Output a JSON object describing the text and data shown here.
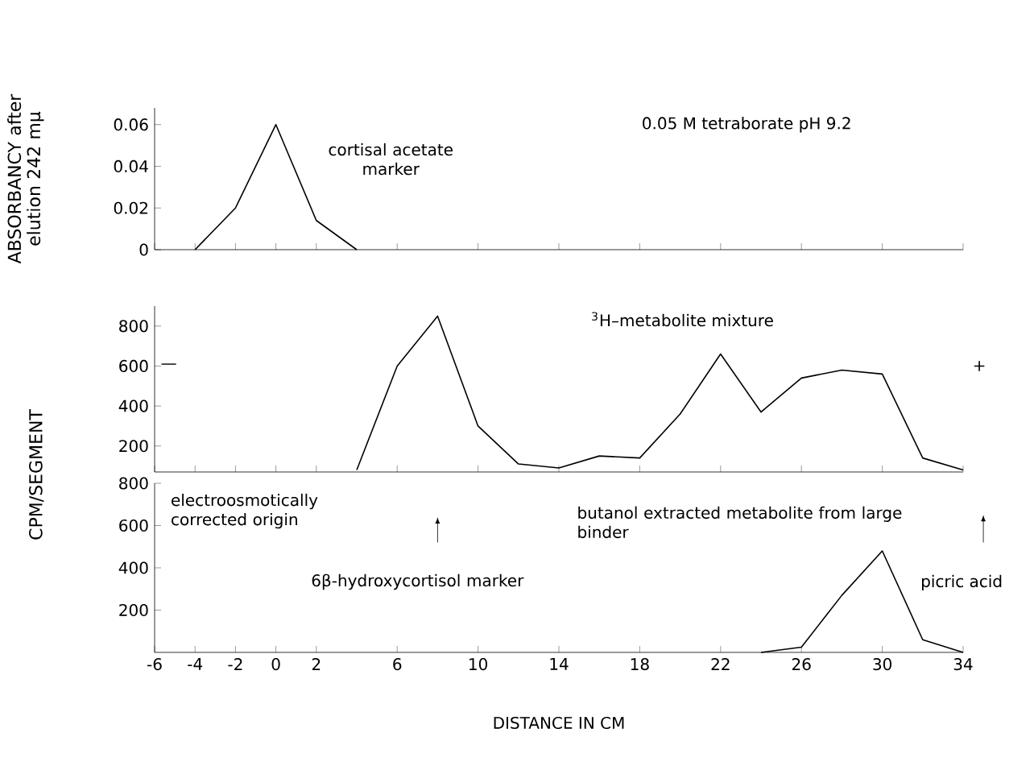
{
  "chart_data": [
    {
      "type": "line",
      "ylabel": "ABSORBANCY after elution 242 mμ",
      "x": [
        -4,
        -2,
        0,
        2,
        4
      ],
      "values": [
        0,
        0.02,
        0.06,
        0.014,
        0
      ],
      "color": "#000000",
      "xlim": [
        -6,
        34
      ],
      "ylim": [
        0,
        0.068
      ],
      "xticks": [
        -6,
        -4,
        -2,
        0,
        2,
        6,
        10,
        14,
        18,
        22,
        26,
        30,
        34
      ],
      "yticks": [
        0,
        0.02,
        0.04,
        0.06
      ],
      "tick_labels": "y",
      "marker": "none",
      "annotations": [
        "0.05 M tetraborate pH 9.2",
        "cortisal acetate marker"
      ]
    },
    {
      "type": "line",
      "x": [
        4,
        6,
        8,
        10,
        12,
        14,
        16,
        18,
        20,
        22,
        24,
        26,
        28,
        30,
        32,
        34
      ],
      "values": [
        80,
        600,
        850,
        300,
        110,
        90,
        150,
        140,
        360,
        660,
        370,
        540,
        580,
        560,
        140,
        80
      ],
      "color": "#000000",
      "xlim": [
        -6,
        34
      ],
      "ylim": [
        70,
        900
      ],
      "xticks": [
        -6,
        -4,
        -2,
        0,
        2,
        6,
        10,
        14,
        18,
        22,
        26,
        30,
        34
      ],
      "yticks": [
        200,
        400,
        600,
        800
      ],
      "tick_labels": "y",
      "marker": "none",
      "annotations": [
        "$^{3}$H–metabolite mixture",
        "—",
        "+"
      ]
    },
    {
      "type": "line",
      "xlabel": "DISTANCE IN CM",
      "ylabel": "CPM/SEGMENT",
      "x": [
        24,
        26,
        28,
        30,
        32,
        34
      ],
      "values": [
        0,
        25,
        270,
        480,
        60,
        0
      ],
      "color": "#000000",
      "xlim": [
        -6,
        34
      ],
      "ylim": [
        0,
        800
      ],
      "xticks": [
        -6,
        -4,
        -2,
        0,
        2,
        6,
        10,
        14,
        18,
        22,
        26,
        30,
        34
      ],
      "yticks": [
        200,
        400,
        600,
        800
      ],
      "marker": "none",
      "annotations": [
        "electroosmotically corrected origin",
        "6β-hydroxycortisol marker",
        "butanol extracted metabolite from large binder",
        "picric acid"
      ]
    }
  ]
}
